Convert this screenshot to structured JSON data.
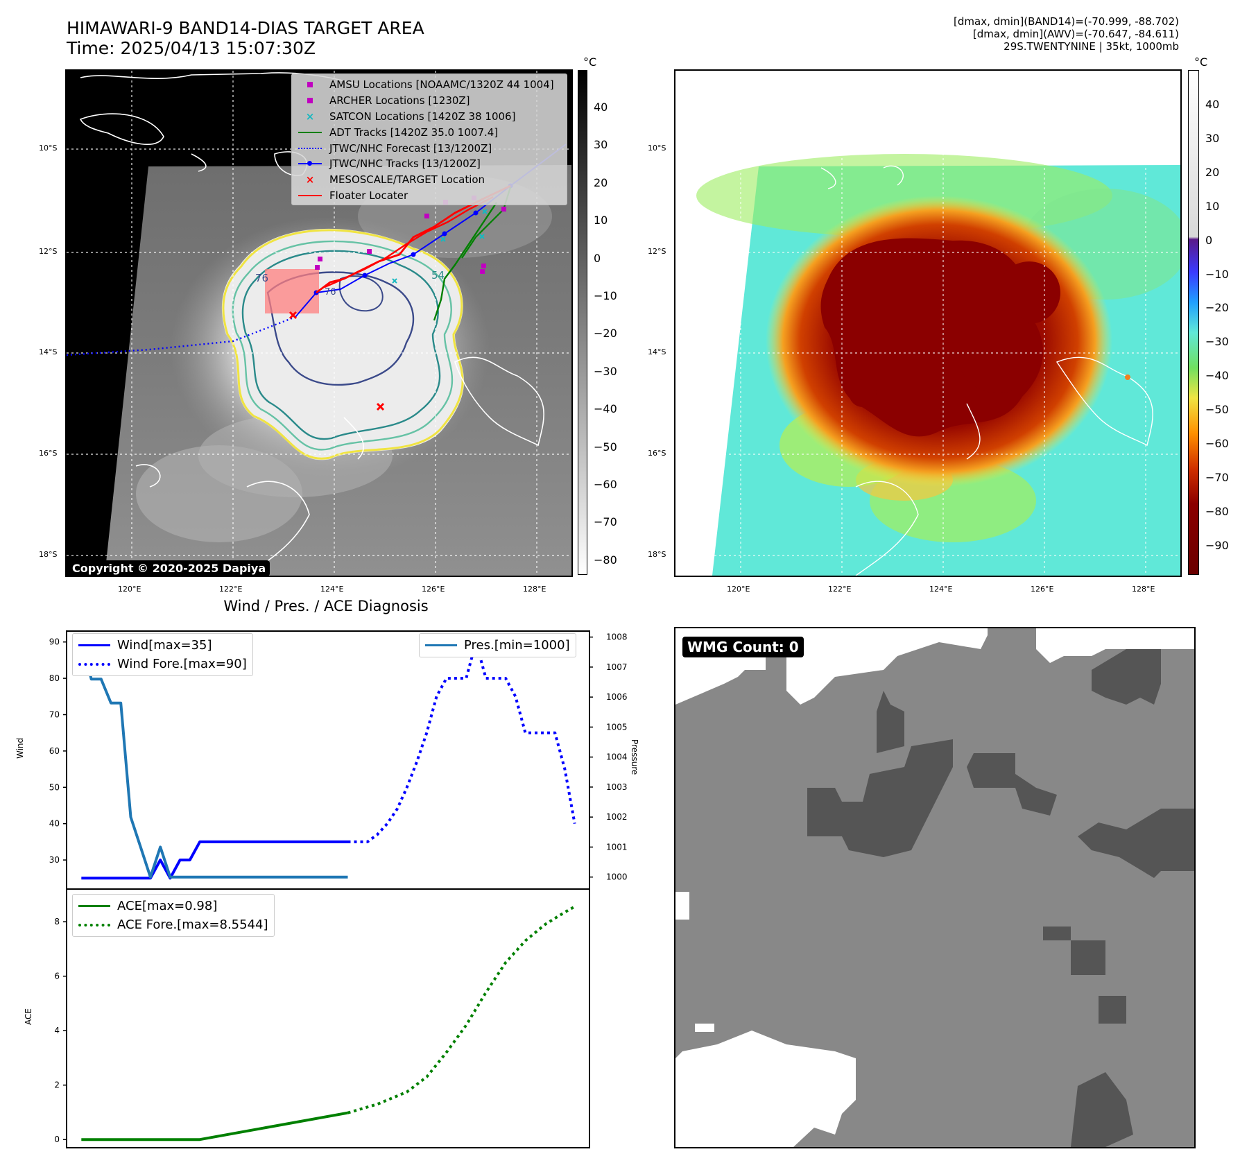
{
  "header": {
    "title": "HIMAWARI-9 BAND14-DIAS TARGET AREA",
    "time": "Time: 2025/04/13 15:07:30Z",
    "meta": [
      "[dmax, dmin](BAND14)=(-70.999, -88.702)",
      "[dmax, dmin](AWV)=(-70.647, -84.611)",
      "29S.TWENTYNINE | 35kt, 1000mb"
    ]
  },
  "map": {
    "lat_ticks": [
      "10°S",
      "12°S",
      "14°S",
      "16°S",
      "18°S"
    ],
    "lon_ticks": [
      "120°E",
      "122°E",
      "124°E",
      "126°E",
      "128°E"
    ],
    "copyright": "Copyright © 2020-2025 Dapiya",
    "contour_labels": [
      "76",
      "76",
      "54",
      "76"
    ],
    "legend": [
      {
        "label": "AMSU Locations [NOAAMC/1320Z 44 1004]",
        "symbol": "square",
        "color": "#c000c0"
      },
      {
        "label": "ARCHER Locations [1230Z]",
        "symbol": "square",
        "color": "#c000c0"
      },
      {
        "label": "SATCON Locations [1420Z 38 1006]",
        "symbol": "x",
        "color": "#17b8c0"
      },
      {
        "label": "ADT Tracks [1420Z 35.0 1007.4]",
        "symbol": "line",
        "color": "#008000"
      },
      {
        "label": "JTWC/NHC Forecast [13/1200Z]",
        "symbol": "dotted",
        "color": "#0000ff"
      },
      {
        "label": "JTWC/NHC Tracks [13/1200Z]",
        "symbol": "line-dot",
        "color": "#0000ff"
      },
      {
        "label": "MESOSCALE/TARGET Location",
        "symbol": "x",
        "color": "#ff0000"
      },
      {
        "label": "Floater Locater",
        "symbol": "line",
        "color": "#ff0000"
      }
    ]
  },
  "colorbar_gray": {
    "unit": "°C",
    "ticks": [
      "40",
      "30",
      "20",
      "10",
      "0",
      "−10",
      "−20",
      "−30",
      "−40",
      "−50",
      "−60",
      "−70",
      "−80"
    ]
  },
  "colorbar_color": {
    "unit": "°C",
    "ticks": [
      "40",
      "30",
      "20",
      "10",
      "0",
      "−10",
      "−20",
      "−30",
      "−40",
      "−50",
      "−60",
      "−70",
      "−80",
      "−90"
    ]
  },
  "wmg": {
    "label": "WMG Count: 0"
  },
  "chart_data": [
    {
      "type": "line",
      "title": "Wind / Pres. / ACE Diagnosis",
      "ylabel": "Wind",
      "ylim": [
        22,
        93
      ],
      "yticks": [
        "30",
        "40",
        "50",
        "60",
        "70",
        "80",
        "90"
      ],
      "y2label": "Pressure",
      "y2lim": [
        999.6,
        1008.2
      ],
      "y2ticks": [
        "1000",
        "1001",
        "1002",
        "1003",
        "1004",
        "1005",
        "1006",
        "1007",
        "1008"
      ],
      "grid": false,
      "series": [
        {
          "name": "Wind[max=35]",
          "color": "#0000ff",
          "style": "solid",
          "axis": "left",
          "x": [
            0,
            1,
            2,
            3,
            4,
            5,
            6,
            7,
            8,
            9,
            10,
            11,
            12,
            13,
            14,
            15,
            16,
            17,
            18,
            19,
            20,
            21,
            22,
            23,
            24,
            25,
            26,
            27
          ],
          "values": [
            25,
            25,
            25,
            25,
            25,
            25,
            25,
            25,
            30,
            25,
            30,
            30,
            35,
            35,
            35,
            35,
            35,
            35,
            35,
            35,
            35,
            35,
            35,
            35,
            35,
            35,
            35,
            35
          ]
        },
        {
          "name": "Wind Fore.[max=90]",
          "color": "#0000ff",
          "style": "dotted",
          "axis": "left",
          "x": [
            27,
            28,
            29,
            30,
            31,
            32,
            33,
            34,
            35,
            36,
            37,
            38,
            39,
            40,
            41,
            42,
            43,
            44,
            45,
            46,
            47,
            48,
            49,
            50
          ],
          "values": [
            35,
            35,
            35,
            37,
            40,
            44,
            50,
            57,
            65,
            75,
            80,
            80,
            80,
            90,
            80,
            80,
            80,
            75,
            65,
            65,
            65,
            65,
            55,
            40
          ]
        },
        {
          "name": "Pres.[min=1000]",
          "color": "#1f77b4",
          "style": "solid",
          "axis": "right",
          "x": [
            0,
            1,
            2,
            3,
            4,
            5,
            6,
            7,
            8,
            9,
            10,
            11,
            12,
            13,
            14,
            15,
            16,
            17,
            18,
            19,
            20,
            21,
            22,
            23,
            24,
            25,
            26,
            27
          ],
          "values": [
            1008,
            1006.6,
            1006.6,
            1005.8,
            1005.8,
            1002,
            1001,
            1000,
            1001,
            1000,
            1000,
            1000,
            1000,
            1000,
            1000,
            1000,
            1000,
            1000,
            1000,
            1000,
            1000,
            1000,
            1000,
            1000,
            1000,
            1000,
            1000,
            1000
          ]
        }
      ]
    },
    {
      "type": "line",
      "ylabel": "ACE",
      "ylim": [
        -0.3,
        9.2
      ],
      "yticks": [
        "0",
        "2",
        "4",
        "6",
        "8"
      ],
      "grid": false,
      "series": [
        {
          "name": "ACE[max=0.98]",
          "color": "#008000",
          "style": "solid",
          "x": [
            0,
            12,
            27
          ],
          "values": [
            0,
            0,
            0.98
          ]
        },
        {
          "name": "ACE Fore.[max=8.5544]",
          "color": "#008000",
          "style": "dotted",
          "x": [
            27,
            30,
            33,
            35,
            37,
            39,
            41,
            43,
            45,
            47,
            49,
            50
          ],
          "values": [
            0.98,
            1.3,
            1.75,
            2.3,
            3.2,
            4.2,
            5.4,
            6.5,
            7.3,
            7.9,
            8.35,
            8.5544
          ]
        }
      ]
    }
  ]
}
